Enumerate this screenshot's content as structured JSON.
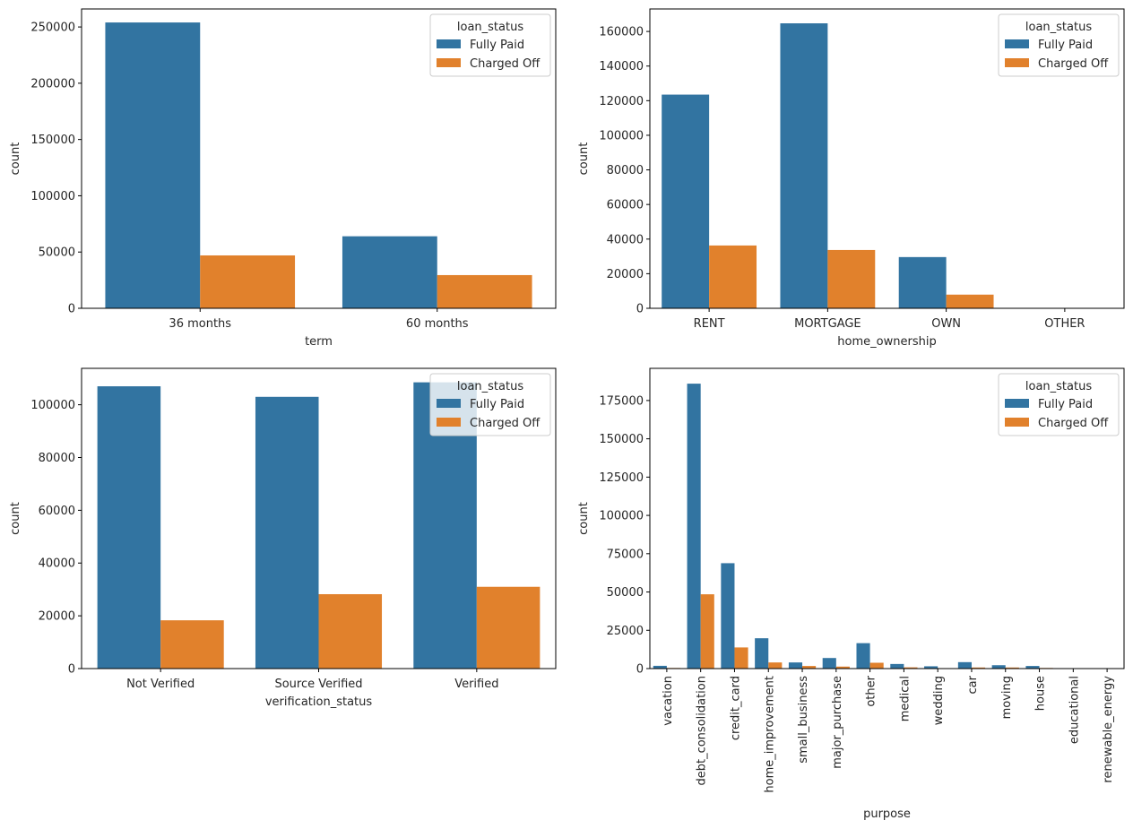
{
  "colors": {
    "fully_paid": "#3274a1",
    "charged_off": "#e1812c"
  },
  "chart_data": [
    {
      "type": "bar",
      "xlabel": "term",
      "ylabel": "count",
      "categories": [
        "36 months",
        "60 months"
      ],
      "yticks": [
        "0",
        "50000",
        "100000",
        "150000",
        "200000",
        "250000"
      ],
      "ylim": [
        0,
        266000
      ],
      "legend": {
        "title": "loan_status",
        "placement": "top-right"
      },
      "series": [
        {
          "name": "Fully Paid",
          "values": [
            254000,
            64000
          ]
        },
        {
          "name": "Charged Off",
          "values": [
            47000,
            29500
          ]
        }
      ]
    },
    {
      "type": "bar",
      "xlabel": "home_ownership",
      "ylabel": "count",
      "categories": [
        "RENT",
        "MORTGAGE",
        "OWN",
        "OTHER"
      ],
      "yticks": [
        "0",
        "20000",
        "40000",
        "60000",
        "80000",
        "100000",
        "120000",
        "140000",
        "160000"
      ],
      "ylim": [
        0,
        173000
      ],
      "legend": {
        "title": "loan_status",
        "placement": "top-right"
      },
      "series": [
        {
          "name": "Fully Paid",
          "values": [
            123500,
            164700,
            29600,
            120
          ]
        },
        {
          "name": "Charged Off",
          "values": [
            36300,
            33700,
            7900,
            30
          ]
        }
      ]
    },
    {
      "type": "bar",
      "xlabel": "verification_status",
      "ylabel": "count",
      "categories": [
        "Not Verified",
        "Source Verified",
        "Verified"
      ],
      "yticks": [
        "0",
        "20000",
        "40000",
        "60000",
        "80000",
        "100000"
      ],
      "ylim": [
        0,
        113800
      ],
      "legend": {
        "title": "loan_status",
        "placement": "top-right"
      },
      "series": [
        {
          "name": "Fully Paid",
          "values": [
            107000,
            103000,
            108500
          ]
        },
        {
          "name": "Charged Off",
          "values": [
            18300,
            28200,
            31000
          ]
        }
      ]
    },
    {
      "type": "bar",
      "xlabel": "purpose",
      "ylabel": "count",
      "categories": [
        "vacation",
        "debt_consolidation",
        "credit_card",
        "home_improvement",
        "small_business",
        "major_purchase",
        "other",
        "medical",
        "wedding",
        "car",
        "moving",
        "house",
        "educational",
        "renewable_energy"
      ],
      "yticks": [
        "0",
        "25000",
        "50000",
        "75000",
        "100000",
        "125000",
        "150000",
        "175000"
      ],
      "ylim": [
        0,
        196000
      ],
      "legend": {
        "title": "loan_status",
        "placement": "top-right"
      },
      "series": [
        {
          "name": "Fully Paid",
          "values": [
            1800,
            186000,
            68800,
            19800,
            4000,
            6900,
            16600,
            3000,
            1500,
            4200,
            2200,
            1700,
            200,
            250
          ]
        },
        {
          "name": "Charged Off",
          "values": [
            400,
            48500,
            13800,
            4000,
            1700,
            1300,
            3800,
            800,
            300,
            700,
            700,
            400,
            50,
            70
          ]
        }
      ]
    }
  ]
}
